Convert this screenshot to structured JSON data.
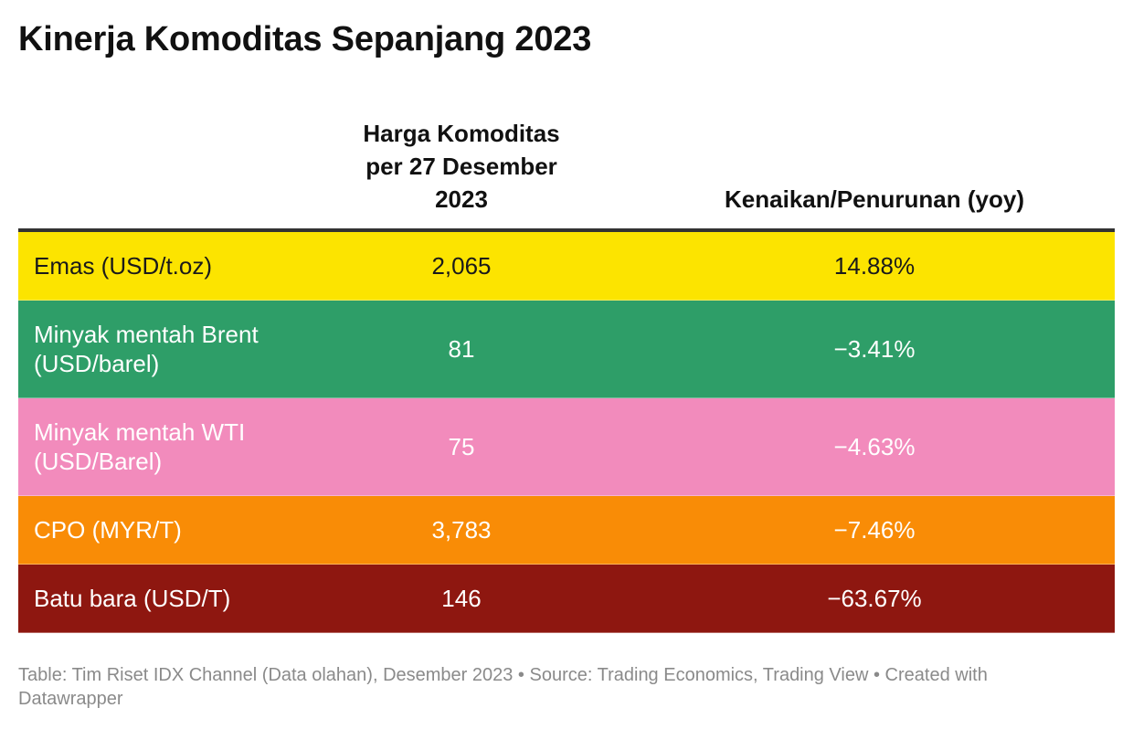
{
  "title": "Kinerja Komoditas Sepanjang 2023",
  "chart_data": {
    "type": "table",
    "title": "Kinerja Komoditas Sepanjang 2023",
    "columns": [
      "",
      "Harga Komoditas\nper 27 Desember\n2023",
      "Kenaikan/Penurunan (yoy)"
    ],
    "rows": [
      {
        "name": "Emas (USD/t.oz)",
        "price": "2,065",
        "change": "14.88%",
        "bg": "#fce400",
        "fg": "#1a1a1a"
      },
      {
        "name": "Minyak mentah Brent\n(USD/barel)",
        "price": "81",
        "change": "−3.41%",
        "bg": "#2e9e68",
        "fg": "#ffffff"
      },
      {
        "name": "Minyak mentah WTI\n(USD/Barel)",
        "price": "75",
        "change": "−4.63%",
        "bg": "#f28bbc",
        "fg": "#ffffff"
      },
      {
        "name": "CPO (MYR/T)",
        "price": "3,783",
        "change": "−7.46%",
        "bg": "#f98c06",
        "fg": "#ffffff"
      },
      {
        "name": "Batu bara (USD/T)",
        "price": "146",
        "change": "−63.67%",
        "bg": "#8e1710",
        "fg": "#ffffff"
      }
    ]
  },
  "footer": "Table: Tim Riset IDX Channel (Data olahan), Desember 2023 • Source: Trading Economics, Trading View • Created with Datawrapper"
}
